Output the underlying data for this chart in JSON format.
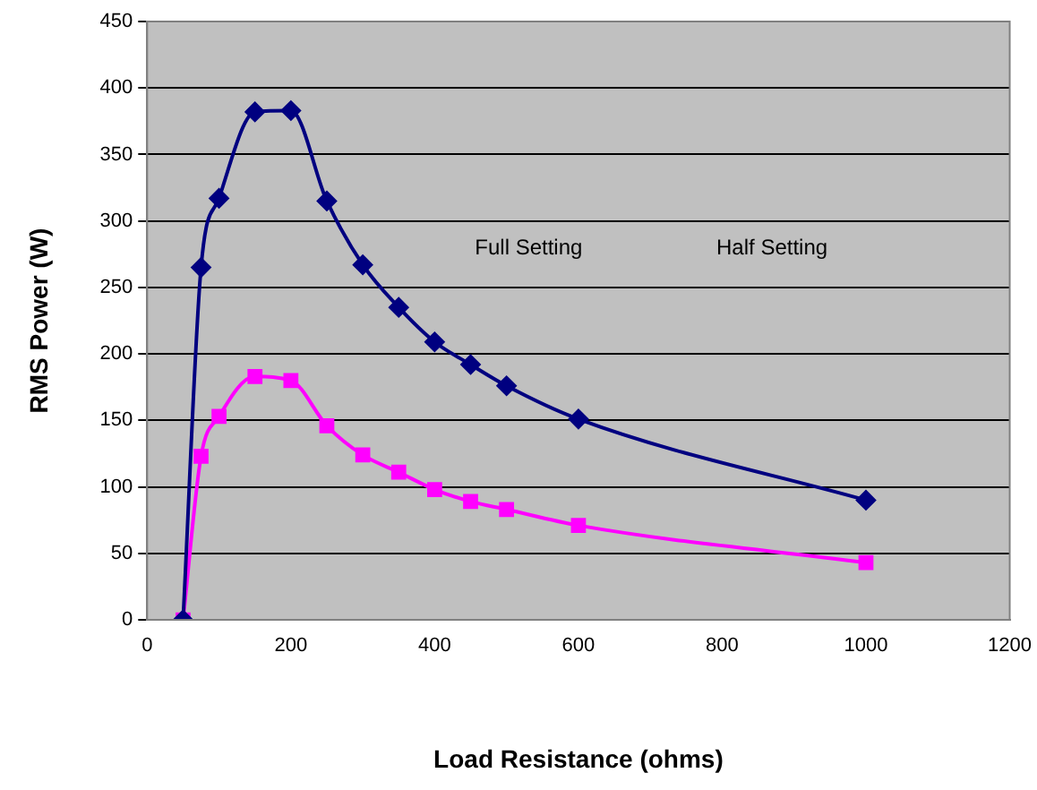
{
  "chart_data": {
    "type": "line",
    "xlabel": "Load Resistance (ohms)",
    "ylabel": "RMS Power (W)",
    "x": [
      50,
      75,
      100,
      150,
      200,
      250,
      300,
      350,
      400,
      450,
      500,
      600,
      1000
    ],
    "series": [
      {
        "color": "#000080",
        "marker": "diamond",
        "values": [
          0,
          265,
          317,
          382,
          383,
          315,
          267,
          235,
          209,
          192,
          176,
          151,
          90
        ]
      },
      {
        "color": "#ff00ff",
        "marker": "square",
        "values": [
          0,
          123,
          153,
          183,
          180,
          146,
          124,
          111,
          98,
          89,
          83,
          71,
          43
        ]
      }
    ],
    "xlim": [
      0,
      1200
    ],
    "xticks": [
      0,
      200,
      400,
      600,
      800,
      1000,
      1200
    ],
    "ylim": [
      0,
      450
    ],
    "yticks": [
      0,
      50,
      100,
      150,
      200,
      250,
      300,
      350,
      400,
      450
    ],
    "grid": "y",
    "legend": false,
    "annotations": [
      "Full Setting",
      "Half Setting"
    ]
  }
}
